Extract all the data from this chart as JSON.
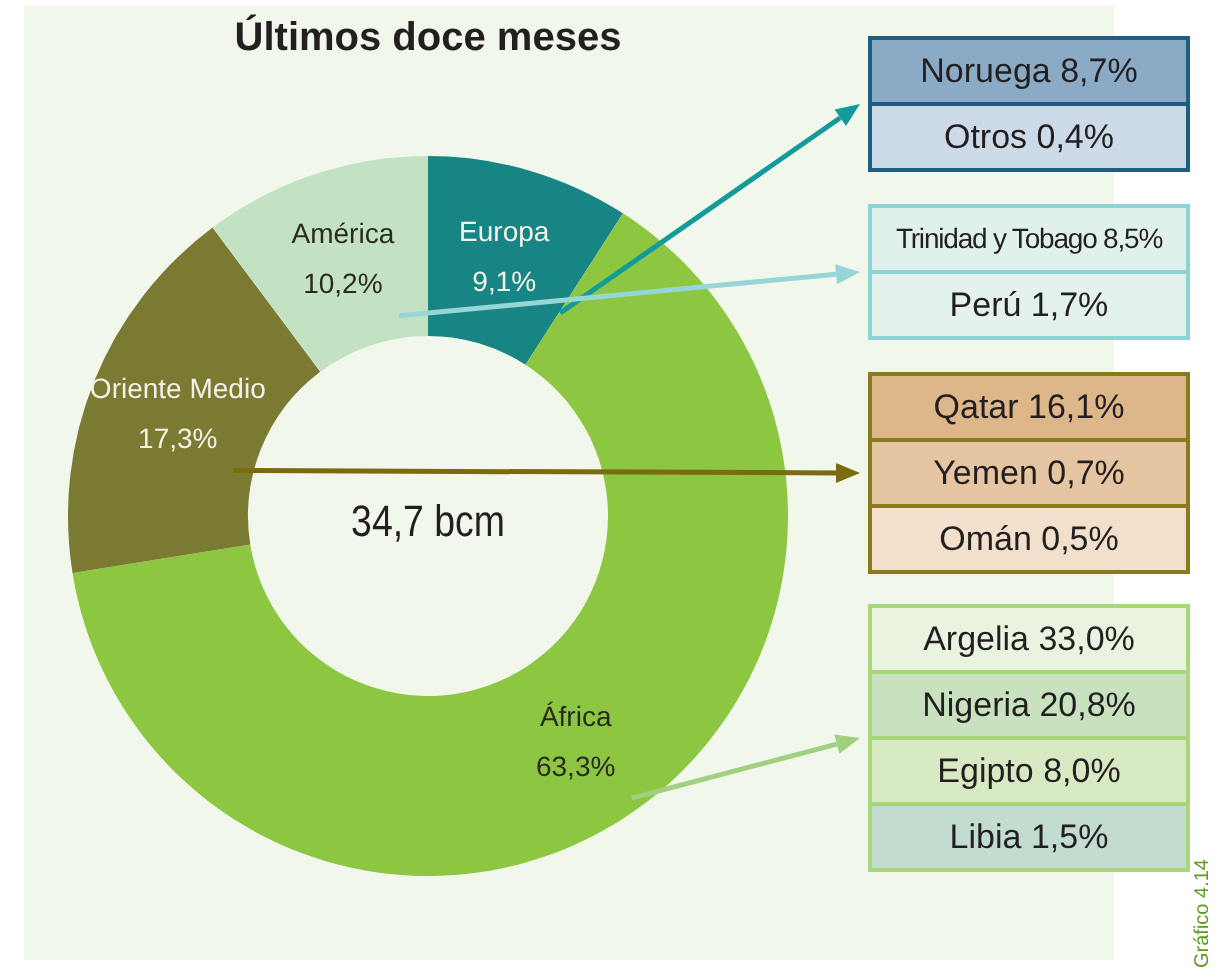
{
  "chart_data": {
    "type": "donut",
    "title": "Últimos doce meses",
    "categories": [
      "Europa",
      "África",
      "Oriente Medio",
      "América"
    ],
    "values": [
      9.1,
      63.3,
      17.3,
      10.2
    ],
    "colors": [
      "#178583",
      "#8dc641",
      "#7a7a33",
      "#c3e2c4"
    ],
    "value_labels": [
      "9,1%",
      "63,3%",
      "17,3%",
      "10,2%"
    ],
    "legend": false,
    "annotations": [
      "34,7 bcm",
      "Gráfico 4.14",
      {
        "text": "Noruega 8,7%",
        "x": "Europa"
      },
      {
        "text": "Otros 0,4%",
        "x": "Europa"
      },
      {
        "text": "Trinidad y Tobago 8,5%",
        "x": "América"
      },
      {
        "text": "Perú 1,7%",
        "x": "América"
      },
      {
        "text": "Qatar 16,1%",
        "x": "Oriente Medio"
      },
      {
        "text": "Yemen 0,7%",
        "x": "Oriente Medio"
      },
      {
        "text": "Omán 0,5%",
        "x": "Oriente Medio"
      },
      {
        "text": "Argelia 33,0%",
        "x": "África"
      },
      {
        "text": "Nigeria 20,8%",
        "x": "África"
      },
      {
        "text": "Egipto 8,0%",
        "x": "África"
      },
      {
        "text": "Libia 1,5%",
        "x": "África"
      }
    ]
  }
}
